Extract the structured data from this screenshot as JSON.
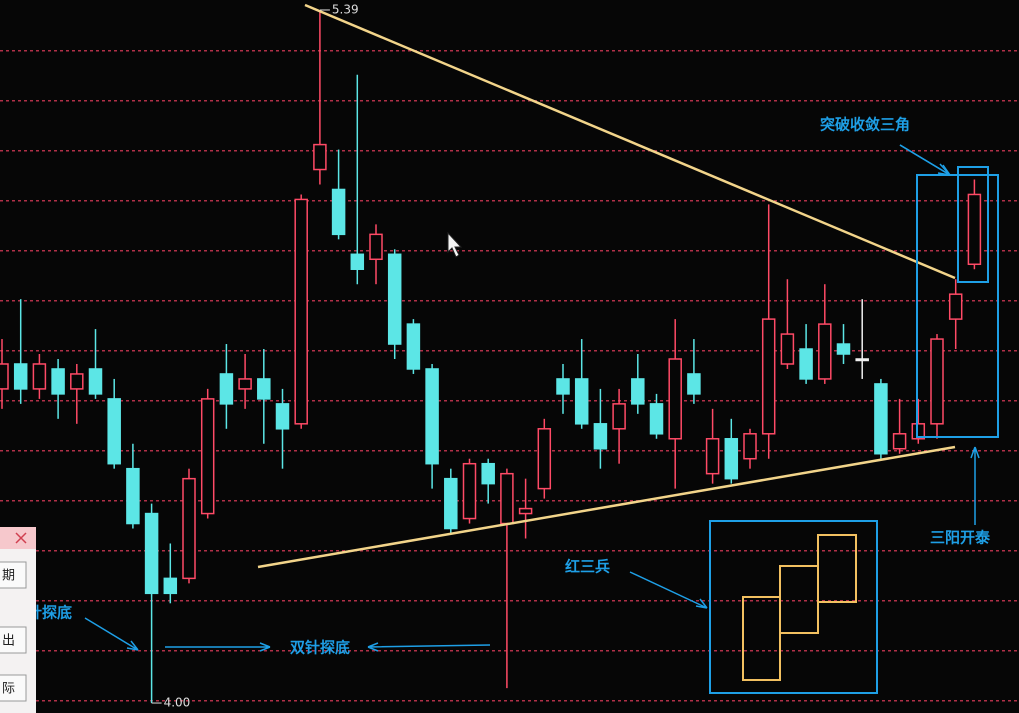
{
  "chart_data": {
    "type": "candlestick",
    "categories": [
      null,
      null,
      null,
      null,
      null,
      null,
      null,
      null,
      null,
      null,
      null,
      null,
      null,
      null,
      null,
      null,
      null,
      null,
      null,
      null,
      null,
      null,
      null,
      null,
      null,
      null,
      null,
      null,
      null,
      null,
      null,
      null,
      null,
      null,
      null,
      null,
      null,
      null,
      null,
      null,
      null,
      null,
      null,
      null,
      null,
      null,
      null,
      null,
      null,
      null,
      null,
      null,
      null
    ],
    "series": [
      {
        "open": [
          4.63,
          4.68,
          4.63,
          4.67,
          4.63,
          4.67,
          4.61,
          4.47,
          4.38,
          4.25,
          4.25,
          4.38,
          4.66,
          4.63,
          4.65,
          4.6,
          4.56,
          5.07,
          5.03,
          4.9,
          4.89,
          4.9,
          4.76,
          4.67,
          4.45,
          4.37,
          4.48,
          4.36,
          4.38,
          4.43,
          4.65,
          4.65,
          4.56,
          4.55,
          4.65,
          4.6,
          4.53,
          4.66,
          4.46,
          4.53,
          4.49,
          4.54,
          4.68,
          4.71,
          4.65,
          4.72,
          4.69,
          4.64,
          4.51,
          4.53,
          4.56,
          4.77,
          4.88
        ],
        "high": [
          4.73,
          4.81,
          4.7,
          4.69,
          4.68,
          4.75,
          4.65,
          4.52,
          4.4,
          4.32,
          4.47,
          4.63,
          4.72,
          4.7,
          4.71,
          4.63,
          5.02,
          5.39,
          5.11,
          5.26,
          4.96,
          4.91,
          4.77,
          4.68,
          4.47,
          4.49,
          4.49,
          4.47,
          4.45,
          4.57,
          4.68,
          4.73,
          4.63,
          4.63,
          4.7,
          4.62,
          4.77,
          4.73,
          4.59,
          4.57,
          4.55,
          5.0,
          4.85,
          4.76,
          4.84,
          4.76,
          4.81,
          4.65,
          4.61,
          4.61,
          4.74,
          4.85,
          5.05
        ],
        "low": [
          4.59,
          4.6,
          4.61,
          4.57,
          4.56,
          4.61,
          4.47,
          4.35,
          4.0,
          4.2,
          4.24,
          4.37,
          4.55,
          4.59,
          4.52,
          4.47,
          4.55,
          5.04,
          4.93,
          4.84,
          4.84,
          4.69,
          4.66,
          4.43,
          4.34,
          4.36,
          4.4,
          4.03,
          4.33,
          4.41,
          4.58,
          4.55,
          4.47,
          4.48,
          4.58,
          4.53,
          4.43,
          4.6,
          4.44,
          4.44,
          4.47,
          4.49,
          4.67,
          4.64,
          4.64,
          4.68,
          4.65,
          4.49,
          4.5,
          4.52,
          4.53,
          4.71,
          4.87
        ],
        "close": [
          4.68,
          4.63,
          4.68,
          4.62,
          4.66,
          4.62,
          4.48,
          4.36,
          4.22,
          4.22,
          4.45,
          4.61,
          4.6,
          4.65,
          4.61,
          4.55,
          5.01,
          5.12,
          4.94,
          4.87,
          4.94,
          4.72,
          4.67,
          4.48,
          4.35,
          4.48,
          4.44,
          4.46,
          4.39,
          4.55,
          4.62,
          4.56,
          4.51,
          4.6,
          4.6,
          4.54,
          4.69,
          4.62,
          4.53,
          4.45,
          4.54,
          4.77,
          4.74,
          4.65,
          4.76,
          4.7,
          4.69,
          4.5,
          4.54,
          4.56,
          4.73,
          4.82,
          5.02
        ]
      }
    ],
    "up_color": "#ff4a66",
    "down_color": "#5ce6e6",
    "flat_color": "#f0f0f0",
    "ylim": [
      3.98,
      5.41
    ],
    "max_label": "5.39",
    "min_label": "4.00",
    "annotations": {
      "breakout": "突破收敛三角",
      "three_yang": "三阳开泰",
      "red_soldiers": "红三兵",
      "golden_needle": "金针探底",
      "double_needle": "双针探底"
    }
  },
  "side_panel": {
    "buttons": [
      "期",
      "出",
      "际"
    ]
  }
}
